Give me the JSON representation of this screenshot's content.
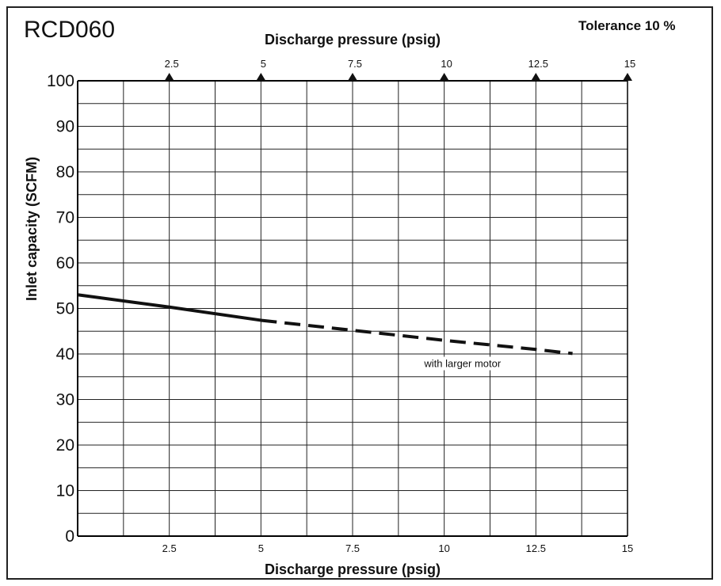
{
  "model": "RCD060",
  "tolerance": "Tolerance 10 %",
  "chart_data": {
    "type": "line",
    "xlabel_top": "Discharge pressure (psig)",
    "xlabel": "Discharge pressure (psig)",
    "ylabel": "Inlet capacity (SCFM)",
    "xlim": [
      0,
      15
    ],
    "ylim": [
      0,
      100
    ],
    "x_ticks": [
      2.5,
      5,
      7.5,
      10,
      12.5,
      15
    ],
    "x_tick_labels": [
      "2.5",
      "5",
      "7.5",
      "10",
      "12.5",
      "15"
    ],
    "y_ticks": [
      0,
      10,
      20,
      30,
      40,
      50,
      60,
      70,
      80,
      90,
      100
    ],
    "y_tick_labels": [
      "0",
      "10",
      "20",
      "30",
      "40",
      "50",
      "60",
      "70",
      "80",
      "90",
      "100"
    ],
    "grid": true,
    "series": [
      {
        "style": "solid",
        "x": [
          0,
          2.5,
          5
        ],
        "y": [
          53,
          50.3,
          47.4
        ]
      },
      {
        "style": "dashed",
        "x": [
          5,
          7.5,
          10,
          12.5,
          13.5
        ],
        "y": [
          47.4,
          45.2,
          43,
          41,
          40.1
        ]
      }
    ],
    "annotations": [
      {
        "text": "with larger motor",
        "x": 10.5,
        "y": 37.3
      }
    ],
    "colors": {
      "line": "#111111",
      "grid": "#222222",
      "axis": "#000000"
    }
  }
}
